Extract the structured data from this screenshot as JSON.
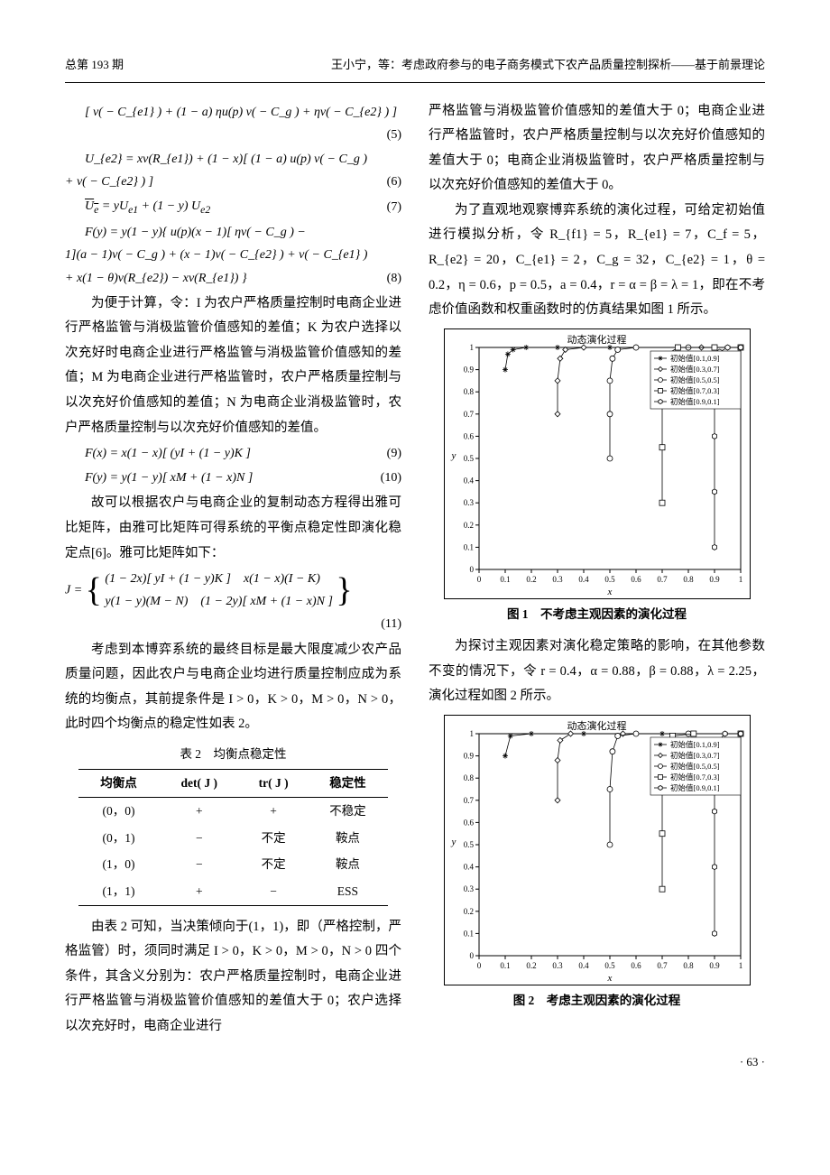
{
  "header": {
    "issue": "总第 193 期",
    "title": "王小宁，等：考虑政府参与的电子商务模式下农产品质量控制探析——基于前景理论"
  },
  "equations": {
    "eq5_body": "[ v( − C_{e1} ) + (1 − a) ηu(p) v( − C_g ) + ηv( − C_{e2} ) ]",
    "eq5_no": "(5)",
    "eq6a": "U_{e2} = xv(R_{e1}) + (1 − x)[ (1 − a) u(p) v( − C_g )",
    "eq6b": "+ v( − C_{e2} ) ]",
    "eq6_no": "(6)",
    "eq7_body": "U̅_e = yU_{e1} + (1 − y) U_{e2}",
    "eq7_no": "(7)",
    "eq8a": "F(y) = y(1 − y){ u(p)(x − 1)[ ηv( − C_g ) −",
    "eq8b": "1](a − 1)v( − C_g ) + (x − 1)v( − C_{e2} ) + v( − C_{e1} )",
    "eq8c": "+ x(1 − θ)v(R_{e2}) − xv(R_{e1}) }",
    "eq8_no": "(8)",
    "eq9_body": "F(x) = x(1 − x)[ (yI + (1 − y)K ]",
    "eq9_no": "(9)",
    "eq10_body": "F(y) = y(1 − y)[ xM + (1 − x)N ]",
    "eq10_no": "(10)",
    "eq11_pre": "J =",
    "eq11_r1": "(1 − 2x)[ yI + (1 − y)K ]　x(1 − x)(I − K)",
    "eq11_r2": "y(1 − y)(M − N)　(1 − 2y)[ xM + (1 − x)N ]",
    "eq11_no": "(11)"
  },
  "text": {
    "p1": "为便于计算，令：I 为农户严格质量控制时电商企业进行严格监管与消极监管价值感知的差值；K 为农户选择以次充好时电商企业进行严格监管与消极监管价值感知的差值；M 为电商企业进行严格监管时，农户严格质量控制与以次充好价值感知的差值；N 为电商企业消极监管时，农户严格质量控制与以次充好价值感知的差值。",
    "p2": "故可以根据农户与电商企业的复制动态方程得出雅可比矩阵，由雅可比矩阵可得系统的平衡点稳定性即演化稳定点[6]。雅可比矩阵如下：",
    "p3": "考虑到本博弈系统的最终目标是最大限度减少农产品质量问题，因此农户与电商企业均进行质量控制应成为系统的均衡点，其前提条件是 I > 0，K > 0，M > 0，N > 0，此时四个均衡点的稳定性如表 2。",
    "p4": "由表 2 可知，当决策倾向于(1，1)，即（严格控制，严格监管）时，须同时满足 I > 0，K > 0，M > 0，N > 0 四个条件，其含义分别为：农户严格质量控制时，电商企业进行严格监管与消极监管价值感知的差值大于 0；农户选择以次充好时，电商企业进行",
    "p5": "严格监管与消极监管价值感知的差值大于 0；电商企业进行严格监管时，农户严格质量控制与以次充好价值感知的差值大于 0；电商企业消极监管时，农户严格质量控制与以次充好价值感知的差值大于 0。",
    "p6": "为了直观地观察博弈系统的演化过程，可给定初始值进行模拟分析，令 R_{f1} = 5，R_{e1} = 7，C_f = 5，R_{e2} = 20，C_{e1} = 2，C_g = 32，C_{e2} = 1，θ = 0.2，η = 0.6，p = 0.5，a = 0.4，r = α = β = λ = 1，即在不考虑价值函数和权重函数时的仿真结果如图 1 所示。",
    "p7": "为探讨主观因素对演化稳定策略的影响，在其他参数不变的情况下，令 r = 0.4，α = 0.88，β = 0.88，λ = 2.25，演化过程如图 2 所示。"
  },
  "table2": {
    "caption": "表 2　均衡点稳定性",
    "headers": [
      "均衡点",
      "det( J )",
      "tr( J )",
      "稳定性"
    ],
    "rows": [
      [
        "(0，0)",
        "+",
        "+",
        "不稳定"
      ],
      [
        "(0，1)",
        "−",
        "不定",
        "鞍点"
      ],
      [
        "(1，0)",
        "−",
        "不定",
        "鞍点"
      ],
      [
        "(1，1)",
        "+",
        "−",
        "ESS"
      ]
    ]
  },
  "charts": {
    "common": {
      "title": "动态演化过程",
      "xlabel": "x",
      "ylabel": "y",
      "xlim": [
        0,
        1
      ],
      "ylim": [
        0,
        1
      ],
      "xticks": [
        0,
        0.1,
        0.2,
        0.3,
        0.4,
        0.5,
        0.6,
        0.7,
        0.8,
        0.9,
        1
      ],
      "yticks": [
        0,
        0.1,
        0.2,
        0.3,
        0.4,
        0.5,
        0.6,
        0.7,
        0.8,
        0.9,
        1
      ],
      "grid": false,
      "border_color": "#000000",
      "background": "#ffffff",
      "line_color": "#000000",
      "tick_fontsize": 9,
      "label_fontsize": 11,
      "title_fontsize": 11,
      "marker_edge": "#000000",
      "marker_fill": "#ffffff",
      "marker_size": 4,
      "linewidth": 0.8
    },
    "fig1": {
      "caption": "图 1　不考虑主观因素的演化过程",
      "legend": [
        {
          "label": "初始值[0.1,0.9]",
          "marker": "*"
        },
        {
          "label": "初始值[0.3,0.7]",
          "marker": "d"
        },
        {
          "label": "初始值[0.5,0.5]",
          "marker": "o"
        },
        {
          "label": "初始值[0.7,0.3]",
          "marker": "s"
        },
        {
          "label": "初始值[0.9,0.1]",
          "marker": "h"
        }
      ],
      "series": [
        {
          "marker": "*",
          "pts": [
            [
              0.1,
              0.9
            ],
            [
              0.11,
              0.97
            ],
            [
              0.13,
              0.99
            ],
            [
              0.18,
              1.0
            ],
            [
              0.3,
              1.0
            ],
            [
              0.5,
              1.0
            ],
            [
              0.8,
              1.0
            ],
            [
              1.0,
              1.0
            ]
          ]
        },
        {
          "marker": "d",
          "pts": [
            [
              0.3,
              0.7
            ],
            [
              0.3,
              0.85
            ],
            [
              0.31,
              0.95
            ],
            [
              0.33,
              0.99
            ],
            [
              0.4,
              1.0
            ],
            [
              0.6,
              1.0
            ],
            [
              0.85,
              1.0
            ],
            [
              1.0,
              1.0
            ]
          ]
        },
        {
          "marker": "o",
          "pts": [
            [
              0.5,
              0.5
            ],
            [
              0.5,
              0.7
            ],
            [
              0.5,
              0.85
            ],
            [
              0.51,
              0.95
            ],
            [
              0.53,
              0.99
            ],
            [
              0.6,
              1.0
            ],
            [
              0.8,
              1.0
            ],
            [
              1.0,
              1.0
            ]
          ]
        },
        {
          "marker": "s",
          "pts": [
            [
              0.7,
              0.3
            ],
            [
              0.7,
              0.55
            ],
            [
              0.7,
              0.75
            ],
            [
              0.71,
              0.9
            ],
            [
              0.72,
              0.97
            ],
            [
              0.76,
              1.0
            ],
            [
              0.9,
              1.0
            ],
            [
              1.0,
              1.0
            ]
          ]
        },
        {
          "marker": "h",
          "pts": [
            [
              0.9,
              0.1
            ],
            [
              0.9,
              0.35
            ],
            [
              0.9,
              0.6
            ],
            [
              0.9,
              0.8
            ],
            [
              0.91,
              0.93
            ],
            [
              0.92,
              0.98
            ],
            [
              0.95,
              1.0
            ],
            [
              1.0,
              1.0
            ]
          ]
        }
      ]
    },
    "fig2": {
      "caption": "图 2　考虑主观因素的演化过程",
      "legend": [
        {
          "label": "初始值[0.1,0.9]",
          "marker": "*"
        },
        {
          "label": "初始值[0.3,0.7]",
          "marker": "d"
        },
        {
          "label": "初始值[0.5,0.5]",
          "marker": "o"
        },
        {
          "label": "初始值[0.7,0.3]",
          "marker": "s"
        },
        {
          "label": "初始值[0.9,0.1]",
          "marker": "h"
        }
      ],
      "series": [
        {
          "marker": "*",
          "pts": [
            [
              0.1,
              0.9
            ],
            [
              0.12,
              0.99
            ],
            [
              0.2,
              1.0
            ],
            [
              0.4,
              1.0
            ],
            [
              0.7,
              1.0
            ],
            [
              1.0,
              1.0
            ]
          ]
        },
        {
          "marker": "d",
          "pts": [
            [
              0.3,
              0.7
            ],
            [
              0.3,
              0.88
            ],
            [
              0.31,
              0.97
            ],
            [
              0.35,
              1.0
            ],
            [
              0.55,
              1.0
            ],
            [
              0.8,
              1.0
            ],
            [
              1.0,
              1.0
            ]
          ]
        },
        {
          "marker": "o",
          "pts": [
            [
              0.5,
              0.5
            ],
            [
              0.5,
              0.75
            ],
            [
              0.51,
              0.92
            ],
            [
              0.53,
              0.99
            ],
            [
              0.6,
              1.0
            ],
            [
              0.8,
              1.0
            ],
            [
              1.0,
              1.0
            ]
          ]
        },
        {
          "marker": "s",
          "pts": [
            [
              0.7,
              0.3
            ],
            [
              0.7,
              0.55
            ],
            [
              0.7,
              0.78
            ],
            [
              0.71,
              0.93
            ],
            [
              0.74,
              0.99
            ],
            [
              0.82,
              1.0
            ],
            [
              1.0,
              1.0
            ]
          ]
        },
        {
          "marker": "h",
          "pts": [
            [
              0.9,
              0.1
            ],
            [
              0.9,
              0.4
            ],
            [
              0.9,
              0.65
            ],
            [
              0.9,
              0.85
            ],
            [
              0.91,
              0.96
            ],
            [
              0.94,
              1.0
            ],
            [
              1.0,
              1.0
            ]
          ]
        }
      ]
    }
  },
  "pagenum": "· 63 ·"
}
